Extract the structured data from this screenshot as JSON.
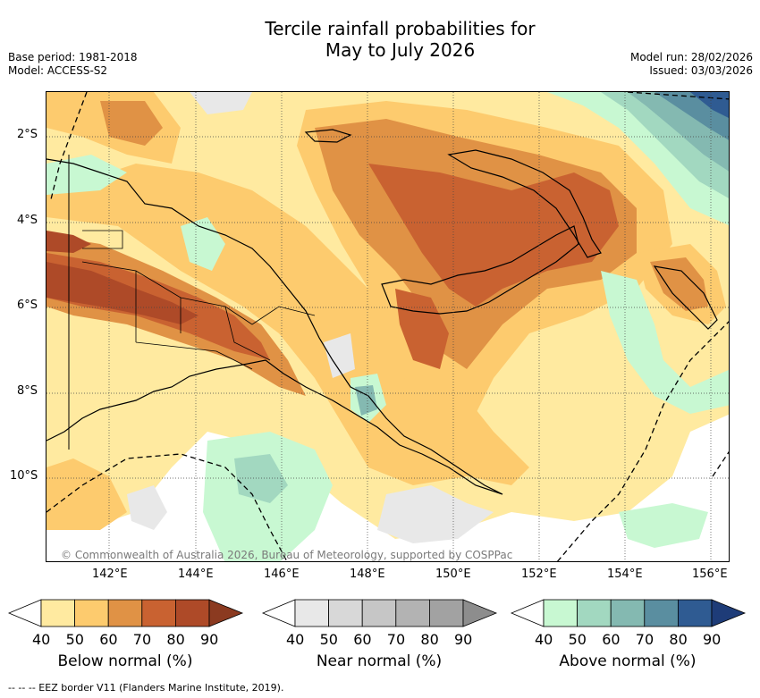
{
  "title": {
    "line1": "Tercile rainfall probabilities for",
    "line2": "May to July 2026"
  },
  "meta": {
    "base_period": "Base period: 1981-2018",
    "model": "Model: ACCESS-S2",
    "model_run": "Model run: 28/02/2026",
    "issued": "Issued: 03/03/2026"
  },
  "map": {
    "lat_labels": [
      "2°S",
      "4°S",
      "6°S",
      "8°S",
      "10°S"
    ],
    "lon_labels": [
      "142°E",
      "144°E",
      "146°E",
      "148°E",
      "150°E",
      "152°E",
      "154°E",
      "156°E"
    ],
    "copyright": "© Commonwealth of Australia 2026, Bureau of Meteorology, supported by COSPPac"
  },
  "colorbars": [
    {
      "name": "below",
      "label": "Below normal (%)",
      "ticks": [
        "40",
        "50",
        "60",
        "70",
        "80",
        "90"
      ],
      "colors": [
        "#ffeaa0",
        "#fdcb6e",
        "#e09245",
        "#c96231",
        "#ae4a28",
        "#8b3a20"
      ]
    },
    {
      "name": "near",
      "label": "Near normal (%)",
      "ticks": [
        "40",
        "50",
        "60",
        "70",
        "80",
        "90"
      ],
      "colors": [
        "#e8e8e8",
        "#d8d8d8",
        "#c6c6c6",
        "#b3b3b3",
        "#a2a2a2",
        "#8d8d8d"
      ]
    },
    {
      "name": "above",
      "label": "Above normal (%)",
      "ticks": [
        "40",
        "50",
        "60",
        "70",
        "80",
        "90"
      ],
      "colors": [
        "#c8f8d2",
        "#a2d8c0",
        "#84b9b1",
        "#5a8ea0",
        "#2f5b92",
        "#1e3c78"
      ]
    }
  ],
  "footer": "--  --  -- EEZ border V11 (Flanders Marine Institute, 2019)."
}
